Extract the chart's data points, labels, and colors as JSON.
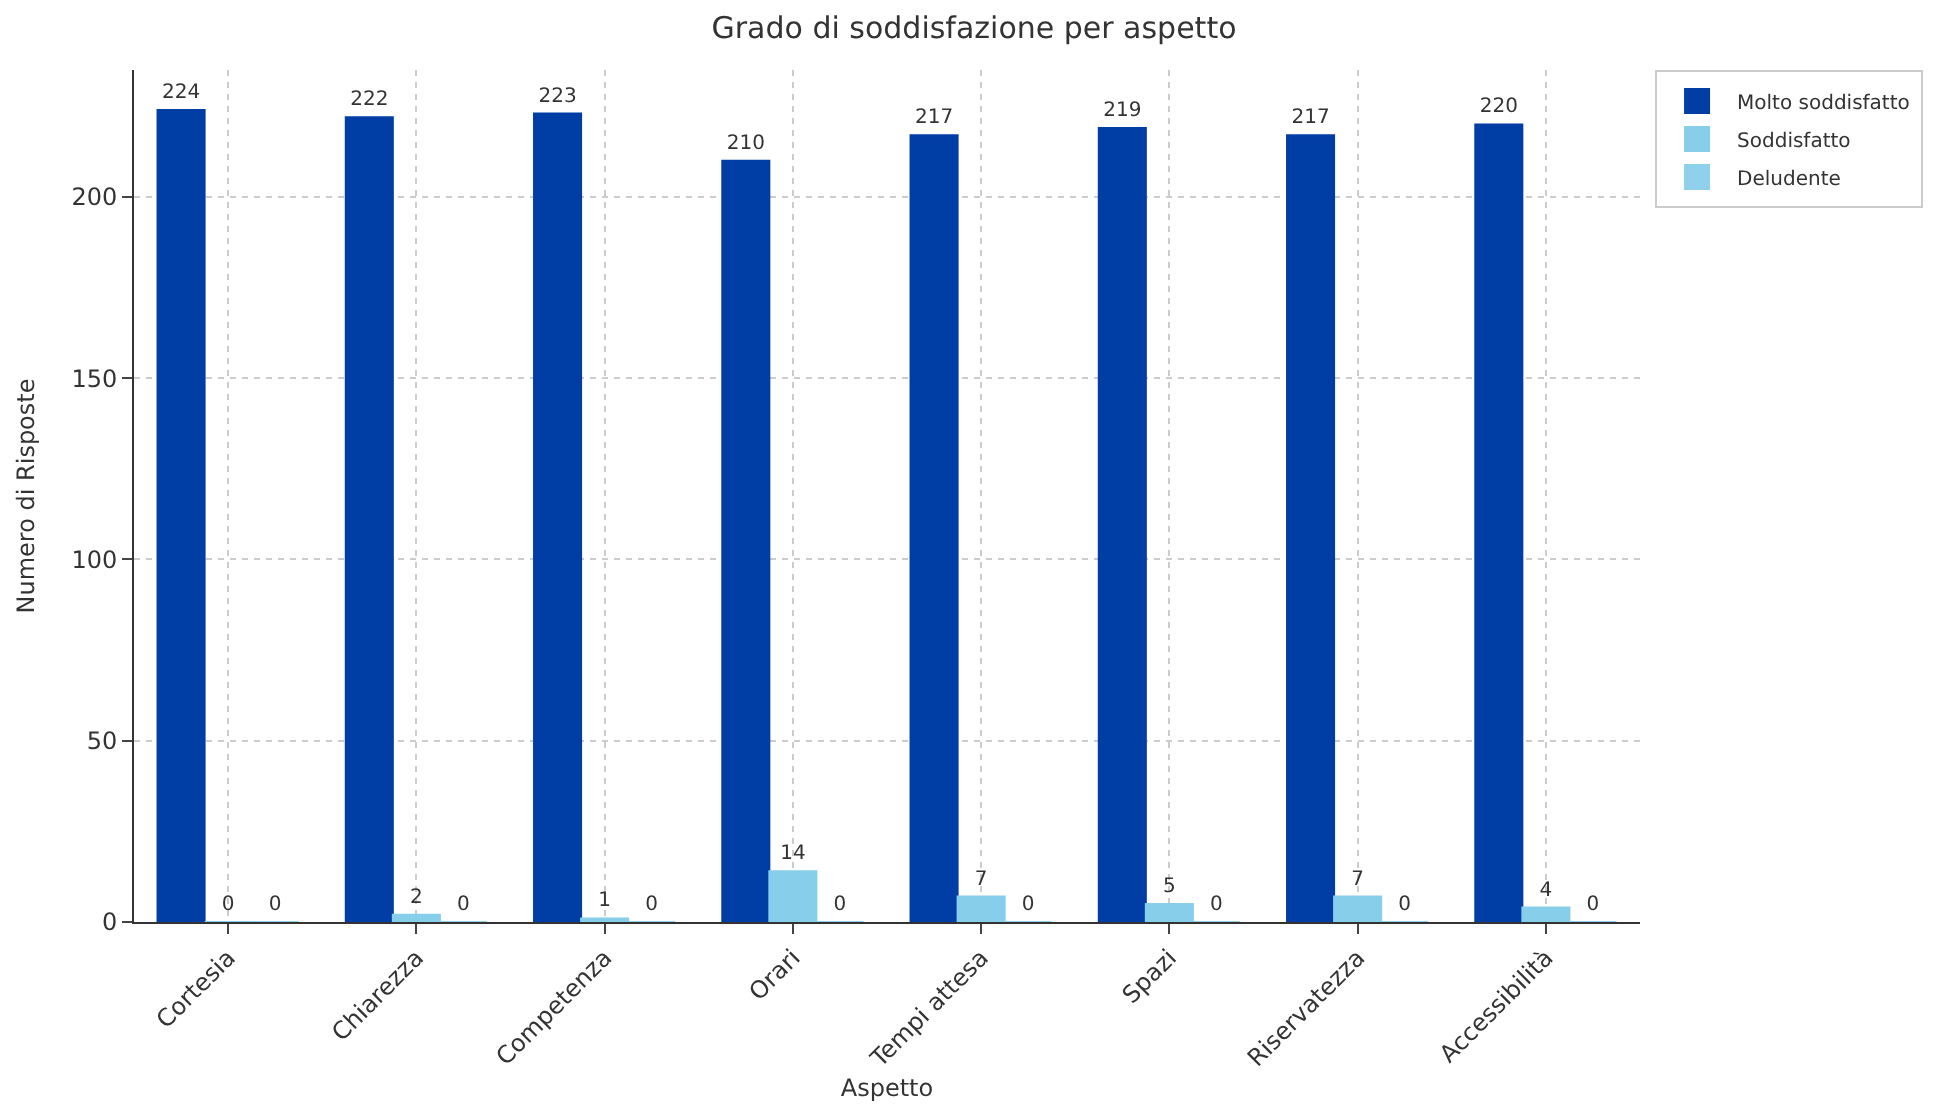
{
  "chart_data": {
    "type": "bar",
    "title": "Grado di soddisfazione per aspetto",
    "xlabel": "Aspetto",
    "ylabel": "Numero di Risposte",
    "categories": [
      "Cortesia",
      "Chiarezza",
      "Competenza",
      "Orari",
      "Tempi attesa",
      "Spazi",
      "Riservatezza",
      "Accessibilità"
    ],
    "series": [
      {
        "name": "Molto soddisfatto",
        "color": "#003da5",
        "values": [
          224,
          222,
          223,
          210,
          217,
          219,
          217,
          220
        ]
      },
      {
        "name": "Soddisfatto",
        "color": "#87ceeb",
        "values": [
          0,
          2,
          1,
          14,
          7,
          5,
          7,
          4
        ]
      },
      {
        "name": "Deludente",
        "color": "#8fd0ec",
        "values": [
          0,
          0,
          0,
          0,
          0,
          0,
          0,
          0
        ]
      }
    ],
    "ylim": [
      0,
      235
    ],
    "yticks": [
      0,
      50,
      100,
      150,
      200
    ],
    "grid": true,
    "legend": "top right",
    "data_labels": true
  }
}
